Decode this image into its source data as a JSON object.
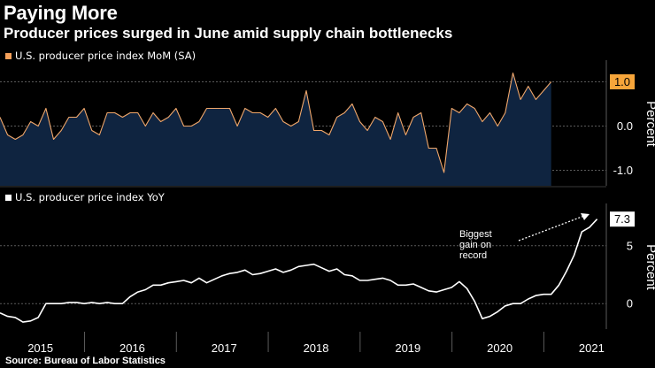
{
  "title": "Paying More",
  "subtitle": "Producer prices surged in June amid supply chain bottlenecks",
  "source": "Source: Bureau of Labor Statistics",
  "colors": {
    "background": "#000000",
    "mom_line": "#f0a76b",
    "mom_fill": "#0f2440",
    "mom_swatch": "#f5a05a",
    "mom_badge": "#f7a53a",
    "yoy_line": "#ffffff",
    "grid": "#5a5a5a"
  },
  "chart_data": [
    {
      "id": "mom",
      "type": "area",
      "legend": "U.S. producer price index MoM (SA)",
      "ylabel": "Percent",
      "ylim": [
        -1.35,
        1.45
      ],
      "yticks": [
        -1.0,
        0.0,
        1.0
      ],
      "ytick_labels": [
        "-1.0",
        "0.0",
        ""
      ],
      "last_value_label": "1.0",
      "x_start": 2015.0,
      "x_step": 0.083333,
      "values": [
        0.2,
        -0.2,
        -0.3,
        -0.2,
        0.1,
        0.0,
        0.4,
        -0.3,
        -0.1,
        0.2,
        0.2,
        0.4,
        -0.1,
        -0.2,
        0.3,
        0.3,
        0.2,
        0.3,
        0.3,
        0.0,
        0.3,
        0.1,
        0.2,
        0.4,
        0.0,
        0.0,
        0.1,
        0.4,
        0.4,
        0.4,
        0.4,
        0.0,
        0.4,
        0.3,
        0.3,
        0.2,
        0.4,
        0.1,
        0.0,
        0.1,
        0.8,
        -0.1,
        -0.1,
        -0.2,
        0.2,
        0.3,
        0.5,
        0.1,
        -0.1,
        0.2,
        0.1,
        -0.3,
        0.3,
        -0.2,
        0.2,
        0.3,
        -0.5,
        -0.5,
        -1.05,
        0.4,
        0.3,
        0.5,
        0.4,
        0.1,
        0.3,
        0.0,
        0.3,
        1.2,
        0.6,
        0.9,
        0.6,
        0.8,
        1.0
      ]
    },
    {
      "id": "yoy",
      "type": "line",
      "legend": "U.S. producer price index YoY",
      "ylabel": "Percent",
      "ylim": [
        -2.2,
        8.5
      ],
      "yticks": [
        0,
        5
      ],
      "ytick_labels": [
        "0",
        "5"
      ],
      "last_value_label": "7.3",
      "x_start": 2015.0,
      "x_step": 0.083333,
      "values": [
        -0.8,
        -1.1,
        -1.2,
        -1.6,
        -1.5,
        -1.2,
        0.0,
        0.0,
        0.0,
        0.1,
        0.1,
        0.0,
        0.1,
        0.0,
        0.1,
        0.0,
        0.0,
        0.6,
        1.0,
        1.2,
        1.6,
        1.6,
        1.8,
        1.9,
        2.0,
        1.8,
        2.2,
        1.8,
        2.1,
        2.4,
        2.6,
        2.7,
        2.9,
        2.5,
        2.6,
        2.8,
        3.0,
        2.7,
        2.9,
        3.2,
        3.3,
        3.4,
        3.1,
        2.8,
        3.0,
        2.5,
        2.4,
        2.0,
        2.0,
        2.1,
        2.2,
        2.0,
        1.6,
        1.6,
        1.7,
        1.4,
        1.1,
        1.0,
        1.2,
        1.4,
        1.9,
        1.3,
        0.2,
        -1.3,
        -1.1,
        -0.7,
        -0.2,
        0.0,
        0.0,
        0.4,
        0.7,
        0.8,
        0.8,
        1.6,
        2.8,
        4.2,
        6.2,
        6.6,
        7.3
      ]
    }
  ],
  "x_axis": {
    "years": [
      "2015",
      "2016",
      "2017",
      "2018",
      "2019",
      "2020",
      "2021"
    ],
    "year_values": [
      2015,
      2016,
      2017,
      2018,
      2019,
      2020,
      2021
    ],
    "range": [
      2015.0,
      2021.6
    ]
  },
  "annotation": {
    "lines": [
      "Biggest",
      "gain on",
      "record"
    ]
  }
}
